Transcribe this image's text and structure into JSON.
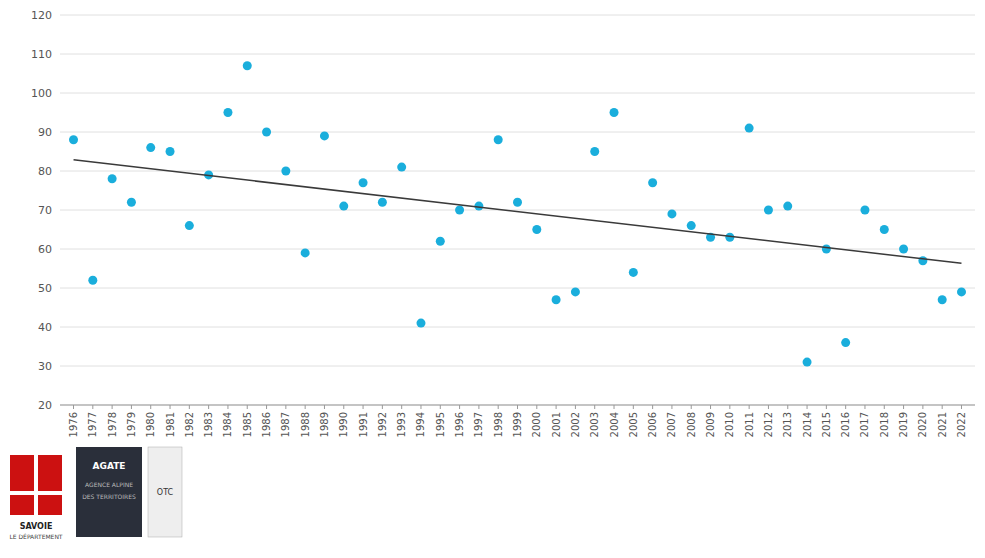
{
  "chart_data": {
    "type": "scatter",
    "x": [
      1976,
      1977,
      1978,
      1979,
      1980,
      1981,
      1982,
      1983,
      1984,
      1985,
      1986,
      1987,
      1988,
      1989,
      1990,
      1991,
      1992,
      1993,
      1994,
      1995,
      1996,
      1997,
      1998,
      1999,
      2000,
      2001,
      2002,
      2003,
      2004,
      2005,
      2006,
      2007,
      2008,
      2009,
      2010,
      2011,
      2012,
      2013,
      2014,
      2015,
      2016,
      2017,
      2018,
      2019,
      2020,
      2021,
      2022
    ],
    "series": [
      {
        "type": "scatter",
        "color": "#1AAEDC",
        "values": [
          88,
          52,
          78,
          72,
          86,
          85,
          66,
          79,
          95,
          107,
          90,
          80,
          59,
          89,
          71,
          77,
          72,
          81,
          41,
          62,
          70,
          71,
          88,
          72,
          65,
          47,
          49,
          85,
          95,
          54,
          77,
          69,
          66,
          63,
          63,
          91,
          70,
          71,
          31,
          60,
          36,
          70,
          65,
          60,
          57,
          47,
          49
        ]
      },
      {
        "type": "line",
        "color": "#3a3a3a",
        "x": [
          1976,
          2022
        ],
        "values": [
          82.859,
          56.332
        ]
      }
    ],
    "xlim": [
      1975.3,
      2022.7
    ],
    "xticks": [
      1976,
      1977,
      1978,
      1979,
      1980,
      1981,
      1982,
      1983,
      1984,
      1985,
      1986,
      1987,
      1988,
      1989,
      1990,
      1991,
      1992,
      1993,
      1994,
      1995,
      1996,
      1997,
      1998,
      1999,
      2000,
      2001,
      2002,
      2003,
      2004,
      2005,
      2006,
      2007,
      2008,
      2009,
      2010,
      2011,
      2012,
      2013,
      2014,
      2015,
      2016,
      2017,
      2018,
      2019,
      2020,
      2021,
      2022
    ],
    "ylim": [
      20,
      120
    ],
    "yticks": [
      20,
      30,
      40,
      50,
      60,
      70,
      80,
      90,
      100,
      110,
      120
    ],
    "grid": true,
    "annotations": [
      "SAVOIE",
      "LE DÉPARTEMENT",
      "AGATE",
      "AGENCE ALPINE",
      "DES TERRITOIRES",
      "OTC"
    ]
  }
}
